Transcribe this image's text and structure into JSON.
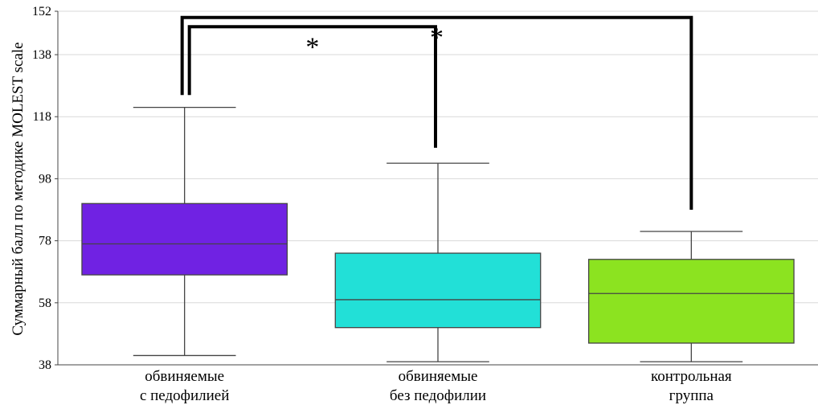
{
  "chart_data": {
    "type": "box",
    "title": "",
    "xlabel": "",
    "ylabel": "Суммарный балл по методике MOLEST scale",
    "ylim": [
      38,
      152
    ],
    "yticks": [
      38,
      58,
      78,
      98,
      118,
      138,
      152
    ],
    "grid": true,
    "categories": [
      {
        "line1": "обвиняемые",
        "line2": "с педофилией"
      },
      {
        "line1": "обвиняемые",
        "line2": "без педофилии"
      },
      {
        "line1": "контрольная",
        "line2": "группа"
      }
    ],
    "boxes": [
      {
        "min": 41,
        "q1": 67,
        "median": 77,
        "q3": 90,
        "max": 121,
        "color": "#7022e3"
      },
      {
        "min": 39,
        "q1": 50,
        "median": 59,
        "q3": 74,
        "max": 103,
        "color": "#22e0d7"
      },
      {
        "min": 39,
        "q1": 45,
        "median": 61,
        "q3": 72,
        "max": 81,
        "color": "#8ce320"
      }
    ],
    "significance": [
      {
        "from": 0,
        "to": 1,
        "label": "*",
        "top": 147,
        "left_end": 125,
        "right_end": 108
      },
      {
        "from": 0,
        "to": 2,
        "label": "*",
        "top": 150,
        "left_end": 125,
        "right_end": 88
      }
    ]
  }
}
